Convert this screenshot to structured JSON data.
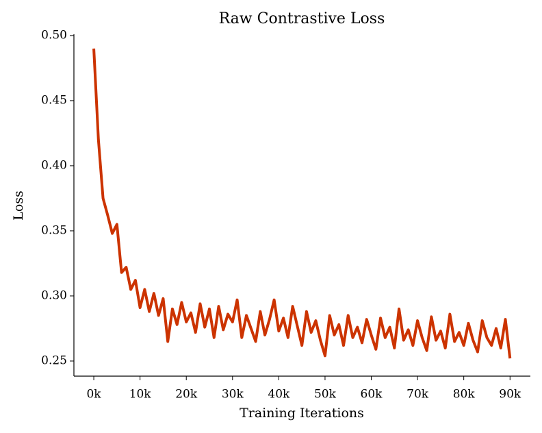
{
  "chart_data": {
    "type": "line",
    "title": "Raw Contrastive Loss",
    "xlabel": "Training Iterations",
    "ylabel": "Loss",
    "x": [
      0,
      1000,
      2000,
      3000,
      4000,
      5000,
      6000,
      7000,
      8000,
      9000,
      10000,
      11000,
      12000,
      13000,
      14000,
      15000,
      16000,
      17000,
      18000,
      19000,
      20000,
      21000,
      22000,
      23000,
      24000,
      25000,
      26000,
      27000,
      28000,
      29000,
      30000,
      31000,
      32000,
      33000,
      34000,
      35000,
      36000,
      37000,
      38000,
      39000,
      40000,
      41000,
      42000,
      43000,
      44000,
      45000,
      46000,
      47000,
      48000,
      49000,
      50000,
      51000,
      52000,
      53000,
      54000,
      55000,
      56000,
      57000,
      58000,
      59000,
      60000,
      61000,
      62000,
      63000,
      64000,
      65000,
      66000,
      67000,
      68000,
      69000,
      70000,
      71000,
      72000,
      73000,
      74000,
      75000,
      76000,
      77000,
      78000,
      79000,
      80000,
      81000,
      82000,
      83000,
      84000,
      85000,
      86000,
      87000,
      88000,
      89000,
      90000
    ],
    "series": [
      {
        "name": "Loss",
        "color": "#cc3300",
        "values": [
          0.49,
          0.42,
          0.375,
          0.362,
          0.348,
          0.355,
          0.318,
          0.322,
          0.305,
          0.312,
          0.291,
          0.305,
          0.288,
          0.302,
          0.285,
          0.298,
          0.265,
          0.29,
          0.278,
          0.295,
          0.28,
          0.287,
          0.272,
          0.294,
          0.276,
          0.29,
          0.268,
          0.292,
          0.274,
          0.286,
          0.28,
          0.297,
          0.268,
          0.285,
          0.275,
          0.265,
          0.288,
          0.27,
          0.282,
          0.297,
          0.273,
          0.283,
          0.268,
          0.292,
          0.277,
          0.262,
          0.288,
          0.272,
          0.281,
          0.266,
          0.254,
          0.285,
          0.27,
          0.278,
          0.262,
          0.285,
          0.268,
          0.276,
          0.264,
          0.282,
          0.27,
          0.259,
          0.283,
          0.268,
          0.276,
          0.26,
          0.29,
          0.266,
          0.274,
          0.262,
          0.281,
          0.268,
          0.258,
          0.284,
          0.266,
          0.273,
          0.26,
          0.286,
          0.265,
          0.272,
          0.262,
          0.279,
          0.266,
          0.257,
          0.281,
          0.268,
          0.262,
          0.275,
          0.26,
          0.282,
          0.252
        ]
      }
    ],
    "xlim": [
      -4300,
      94400
    ],
    "ylim": [
      0.2384,
      0.501
    ],
    "xticks": [
      {
        "value": 0,
        "label": "0k"
      },
      {
        "value": 10000,
        "label": "10k"
      },
      {
        "value": 20000,
        "label": "20k"
      },
      {
        "value": 30000,
        "label": "30k"
      },
      {
        "value": 40000,
        "label": "40k"
      },
      {
        "value": 50000,
        "label": "50k"
      },
      {
        "value": 60000,
        "label": "60k"
      },
      {
        "value": 70000,
        "label": "70k"
      },
      {
        "value": 80000,
        "label": "80k"
      },
      {
        "value": 90000,
        "label": "90k"
      }
    ],
    "yticks": [
      0.25,
      {
        "value": 0.3,
        "label": "0.30"
      },
      0.35,
      {
        "value": 0.4,
        "label": "0.40"
      },
      0.45,
      {
        "value": 0.5,
        "label": "0.50"
      }
    ]
  }
}
